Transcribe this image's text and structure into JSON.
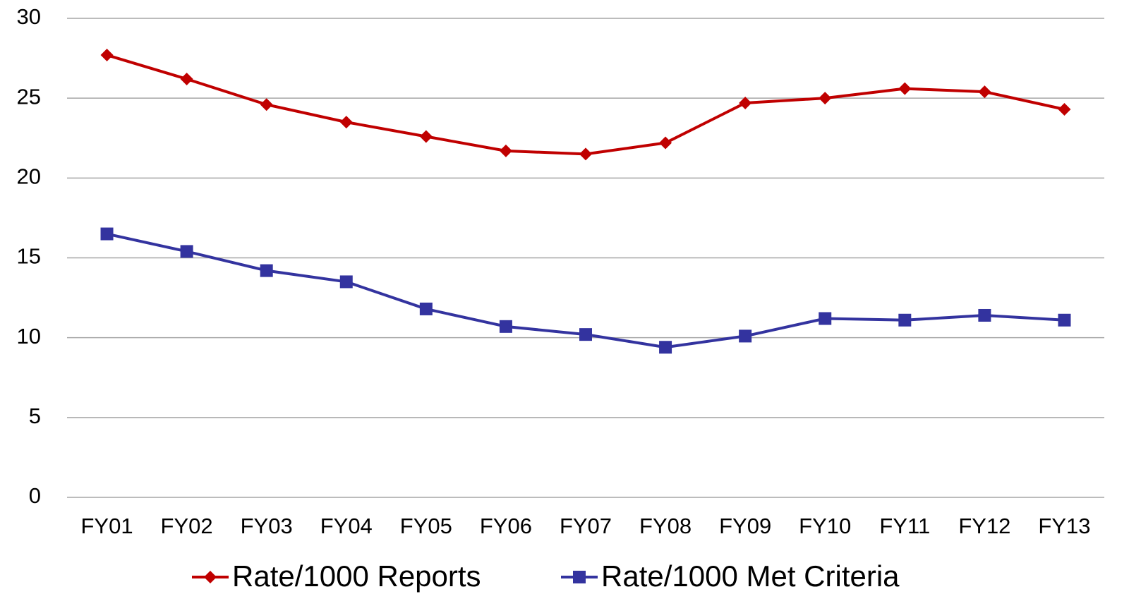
{
  "chart_data": {
    "type": "line",
    "categories": [
      "FY01",
      "FY02",
      "FY03",
      "FY04",
      "FY05",
      "FY06",
      "FY07",
      "FY08",
      "FY09",
      "FY10",
      "FY11",
      "FY12",
      "FY13"
    ],
    "series": [
      {
        "name": "Rate/1000 Reports",
        "color": "#c00000",
        "marker": "diamond",
        "values": [
          27.7,
          26.2,
          24.6,
          23.5,
          22.6,
          21.7,
          21.5,
          22.2,
          24.7,
          25.0,
          25.6,
          25.4,
          24.3
        ]
      },
      {
        "name": "Rate/1000 Met Criteria",
        "color": "#33339f",
        "marker": "square",
        "values": [
          16.5,
          15.4,
          14.2,
          13.5,
          11.8,
          10.7,
          10.2,
          9.4,
          10.1,
          11.2,
          11.1,
          11.4,
          11.1
        ]
      }
    ],
    "ylim": [
      0,
      30
    ],
    "yticks": [
      0,
      5,
      10,
      15,
      20,
      25,
      30
    ],
    "grid": true,
    "legend": "bottom"
  }
}
